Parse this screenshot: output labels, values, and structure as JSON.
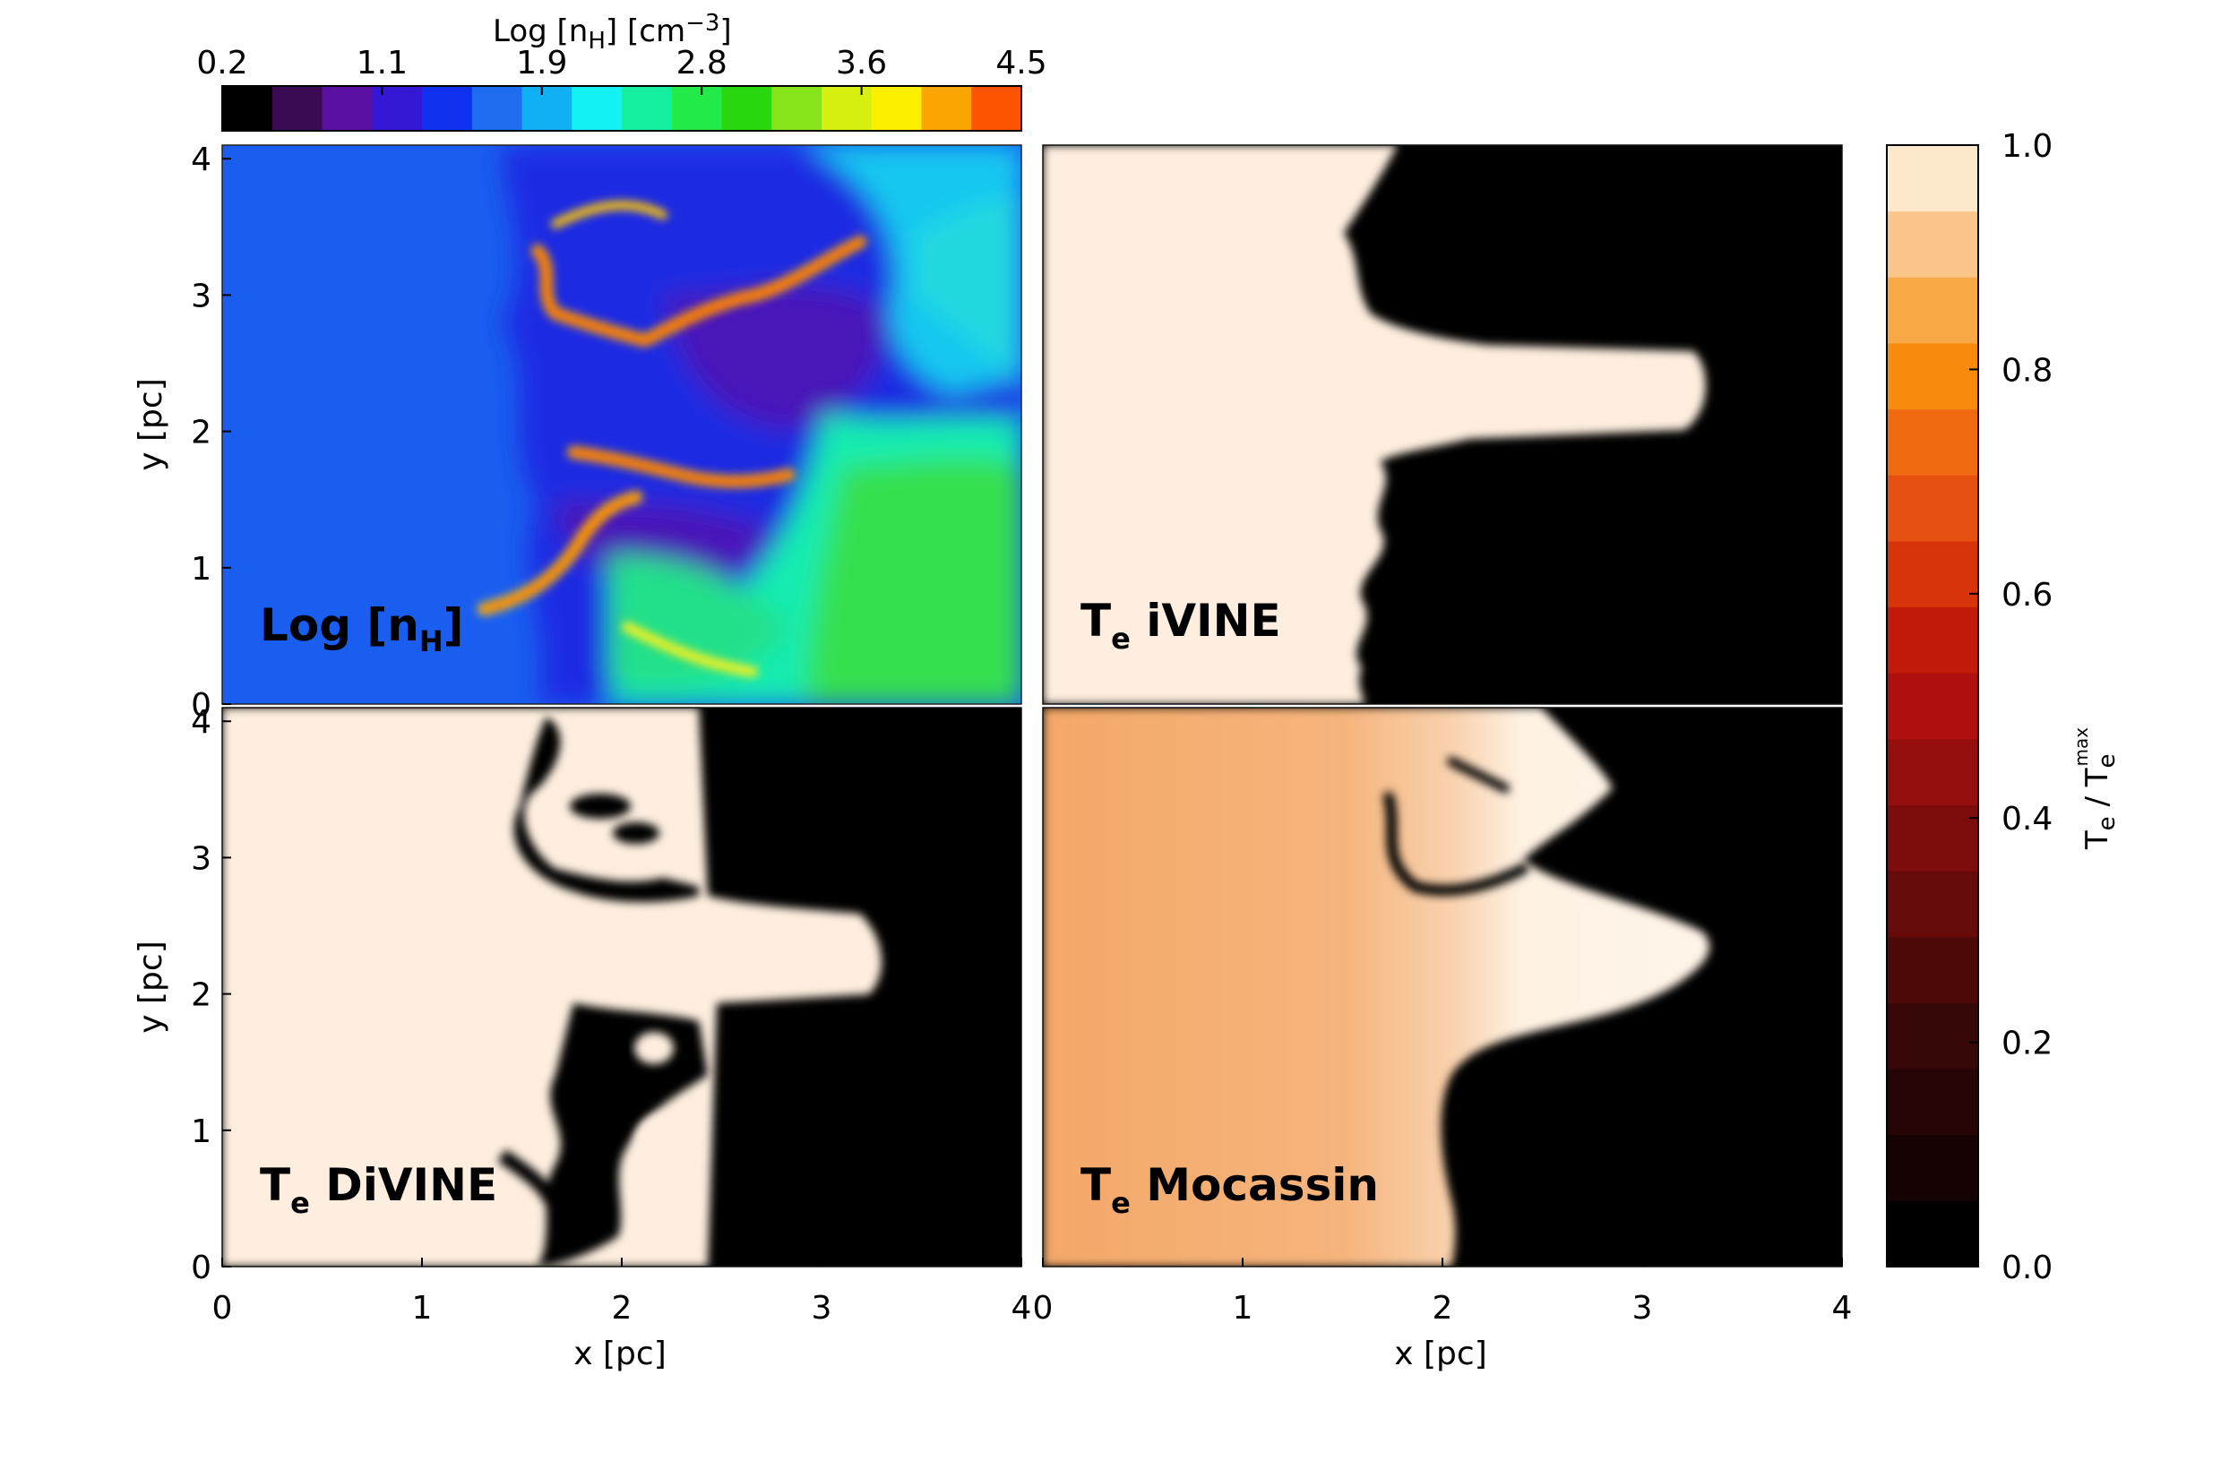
{
  "figure": {
    "top_colorbar": {
      "title": "Log [n",
      "title_sub": "H",
      "title_unit": "] [cm",
      "title_sup": "−3",
      "title_end": "]",
      "ticks": [
        "0.2",
        "1.1",
        "1.9",
        "2.8",
        "3.6",
        "4.5"
      ],
      "colors": [
        "#000000",
        "#3a0a52",
        "#5a10a0",
        "#3418d6",
        "#1030f0",
        "#1e6cf0",
        "#10b0f4",
        "#12f2f2",
        "#14f0a0",
        "#22ea48",
        "#2ad810",
        "#88e41a",
        "#d8f010",
        "#fcf000",
        "#fca400",
        "#fc5400"
      ]
    },
    "right_colorbar": {
      "title": "T",
      "title_sub": "e",
      "title_mid": " / T",
      "title_sub2": "e",
      "title_sup": "max",
      "ticks": [
        "0.0",
        "0.2",
        "0.4",
        "0.6",
        "0.8",
        "1.0"
      ],
      "colors": [
        "#000000",
        "#150303",
        "#260505",
        "#380707",
        "#4f0808",
        "#660a0a",
        "#7e0c0c",
        "#970e0e",
        "#b01010",
        "#c41a0c",
        "#d8340c",
        "#e65010",
        "#f06a12",
        "#f78b0e",
        "#f9a846",
        "#fbc68a",
        "#fde8cc"
      ]
    },
    "x_axis": {
      "label": "x [pc]",
      "ticks": [
        "0",
        "1",
        "2",
        "3",
        "4"
      ]
    },
    "y_axis": {
      "label": "y [pc]",
      "ticks": [
        "0",
        "1",
        "2",
        "3",
        "4"
      ]
    },
    "panels": [
      {
        "id": "nh",
        "label": "Log [n",
        "label_sub": "H",
        "label_end": "]"
      },
      {
        "id": "ivine",
        "label": "T",
        "label_sub": "e",
        "label_end": " iVINE"
      },
      {
        "id": "divine",
        "label": "T",
        "label_sub": "e",
        "label_end": " DiVINE"
      },
      {
        "id": "mocassin",
        "label": "T",
        "label_sub": "e",
        "label_end": " Mocassin"
      }
    ]
  },
  "chart_data": [
    {
      "type": "heatmap",
      "panel": "Log [nH]",
      "xlabel": "",
      "ylabel": "y [pc]",
      "xlim": [
        0,
        4
      ],
      "ylim": [
        0,
        4.1
      ],
      "colorbar": {
        "label": "Log [nH] [cm−3]",
        "range": [
          0.2,
          4.5
        ],
        "ticks": [
          0.2,
          1.1,
          1.9,
          2.8,
          3.6,
          4.5
        ]
      },
      "description": "Ionised region (log nH ≈ 1.4) at x < 1.6 pc; dense filaments (log nH ≈ 3.5–4.5) near x ≈ 1.6–2.6 pc; neutral gas (log nH ≈ 2.5–3.4) at x > 3 pc"
    },
    {
      "type": "heatmap",
      "panel": "Te iVINE",
      "xlim": [
        0,
        4
      ],
      "ylim": [
        0,
        4.1
      ],
      "colorbar": {
        "label": "Te / Te max",
        "range": [
          0.0,
          1.0
        ],
        "ticks": [
          0.0,
          0.2,
          0.4,
          0.6,
          0.8,
          1.0
        ]
      },
      "description": "Hot region (≈1.0) for x < ~2.0 pc, cold (≈0.0) beyond; finger of hot gas extends to x ≈ 3.4 pc at y ≈ 2.0–2.5 pc"
    },
    {
      "type": "heatmap",
      "panel": "Te DiVINE",
      "xlabel": "x [pc]",
      "ylabel": "y [pc]",
      "xlim": [
        0,
        4
      ],
      "ylim": [
        0,
        4.1
      ],
      "description": "Hot region (≈1.0) for x < ~2.4 pc with cold clumps near x ≈ 1.8–2.2 pc; finger to x ≈ 3.4 pc at y ≈ 2.0–2.5 pc; cold beyond x ≈ 2.5 pc"
    },
    {
      "type": "heatmap",
      "panel": "Te Mocassin",
      "xlabel": "x [pc]",
      "xlim": [
        0,
        4
      ],
      "ylim": [
        0,
        4.1
      ],
      "description": "Warm (≈0.8) at x < 1.5 pc rising to ≈1.0 near x ≈ 1.7–2.8 pc; cold (≈0.0) beyond the ionisation front; finger to x ≈ 3.4 pc"
    }
  ]
}
